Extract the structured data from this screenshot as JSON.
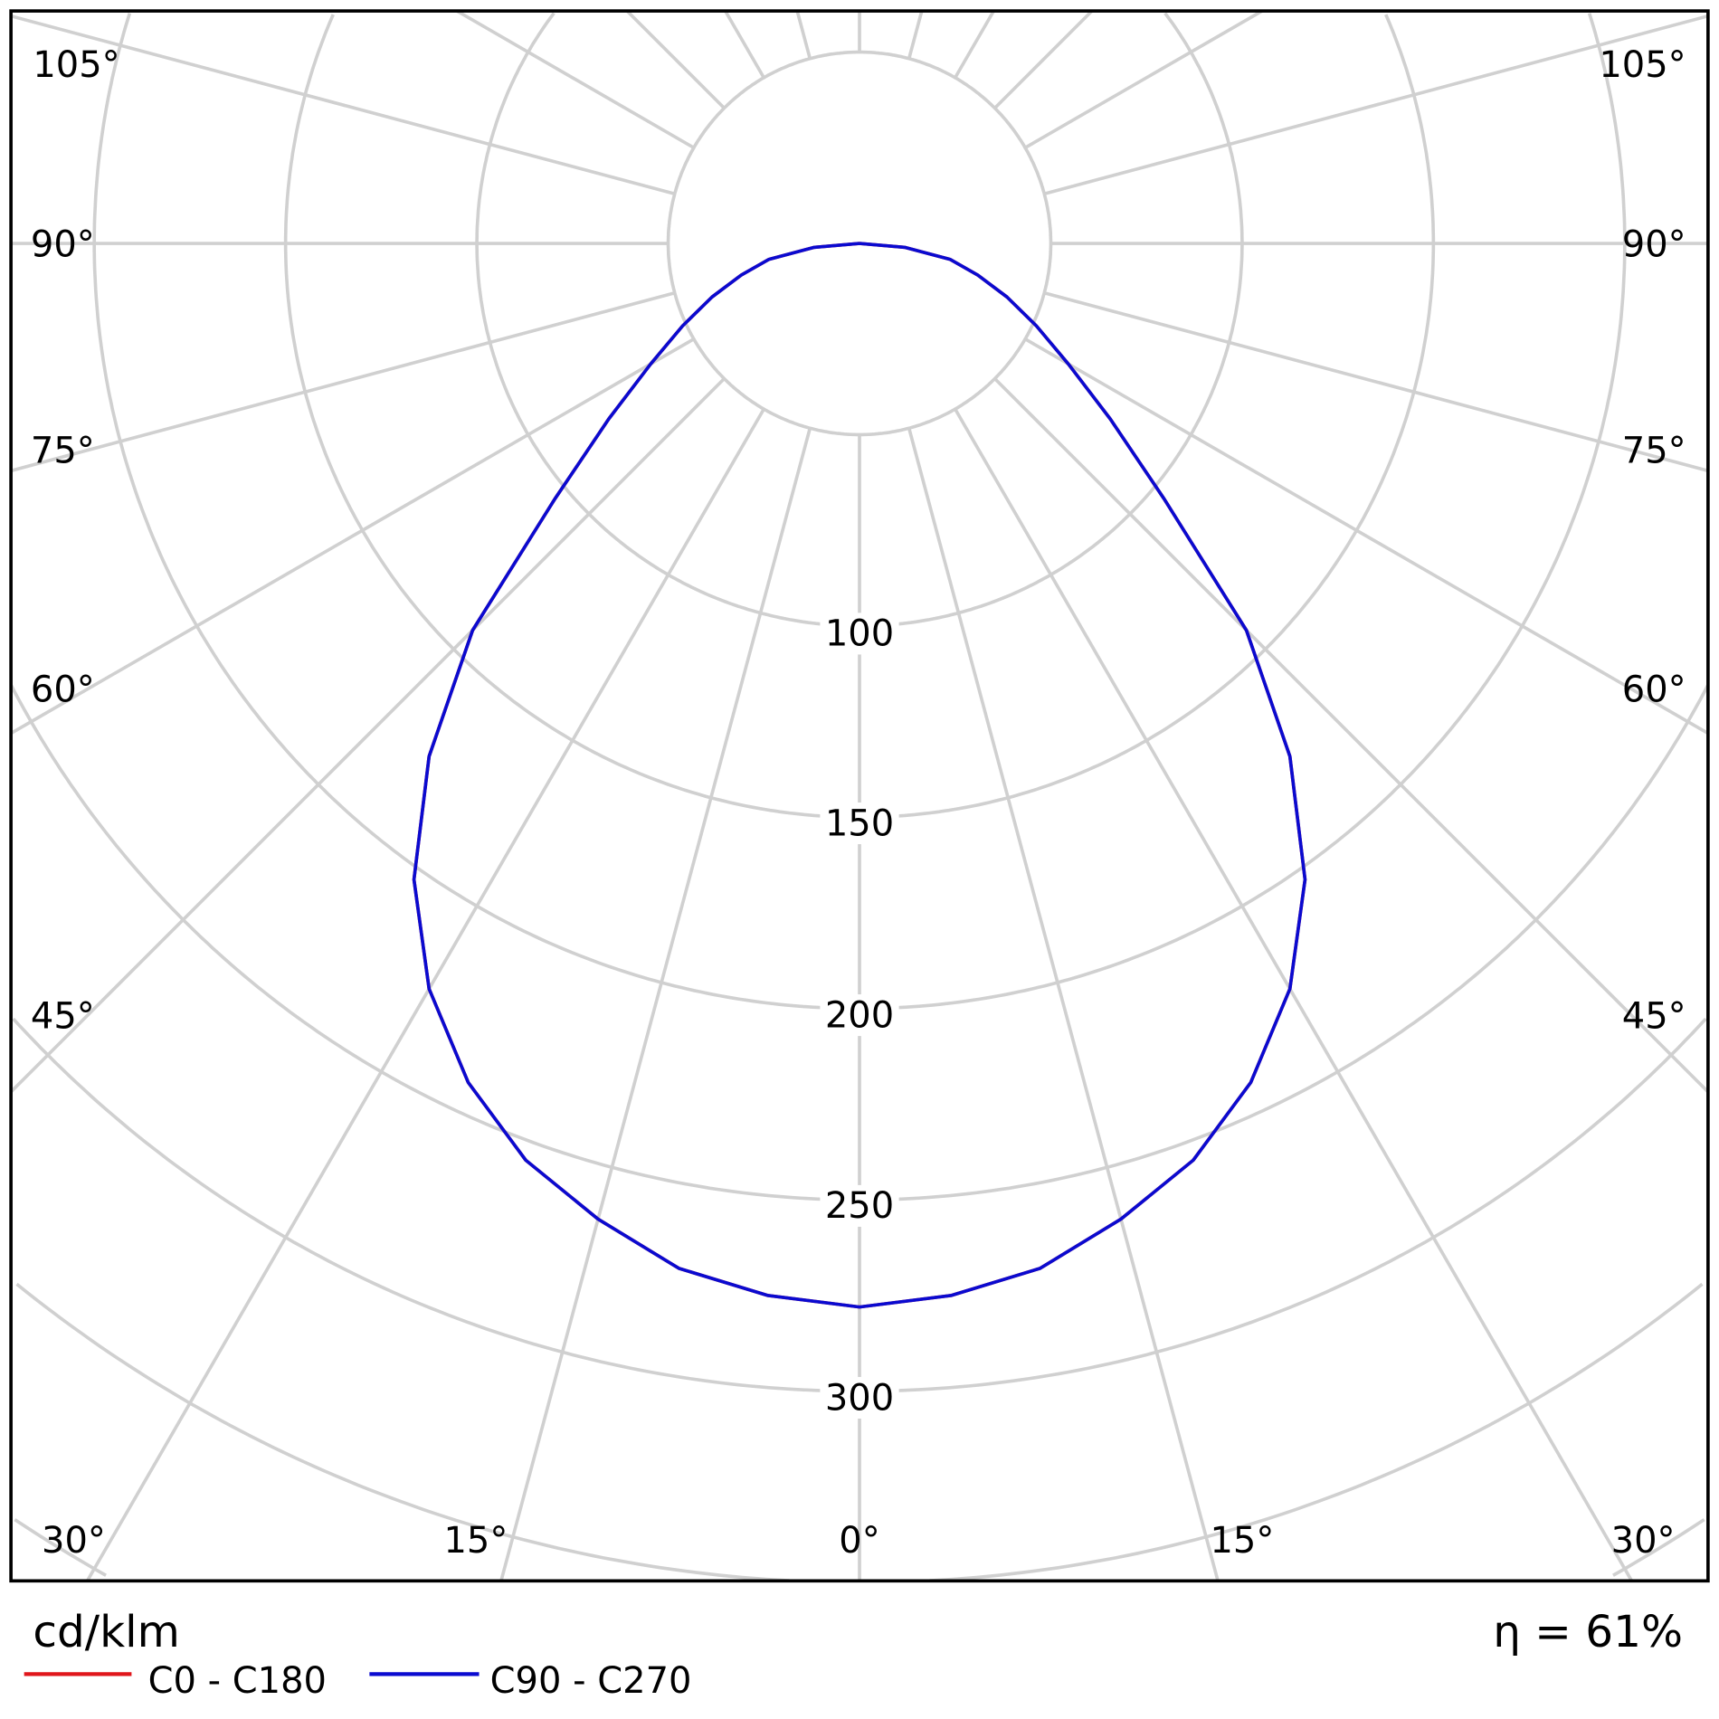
{
  "chart_data": {
    "type": "polar",
    "unit_label": "cd/klm",
    "efficiency_label": "η = 61%",
    "radial_ticks": [
      100,
      150,
      200,
      250,
      300
    ],
    "radial_grid_step": 50,
    "angle_ticks": [
      "105°",
      "90°",
      "75°",
      "60°",
      "45°",
      "30°",
      "15°",
      "0°",
      "15°",
      "30°",
      "45°",
      "60°",
      "75°",
      "90°",
      "105°"
    ],
    "angle_grid_step_deg": 15,
    "grid": true,
    "legend_placement": "bottom-left",
    "angles_deg": [
      0,
      5,
      10,
      15,
      20,
      25,
      30,
      35,
      40,
      45,
      50,
      55,
      60,
      65,
      70,
      75,
      80,
      85,
      90
    ],
    "series": [
      {
        "name": "C0 - C180",
        "color": "#e0161b",
        "values": [
          278,
          276,
          272,
          264,
          255,
          242,
          225,
          203,
          175,
          143,
          104,
          80,
          63,
          51,
          41,
          32,
          24,
          12,
          0
        ]
      },
      {
        "name": "C90 - C270",
        "color": "#0a0ad0",
        "values": [
          278,
          276,
          272,
          264,
          255,
          242,
          225,
          203,
          175,
          143,
          104,
          80,
          63,
          51,
          41,
          32,
          24,
          12,
          0
        ]
      }
    ],
    "grid_color": "#d0d0d0"
  }
}
